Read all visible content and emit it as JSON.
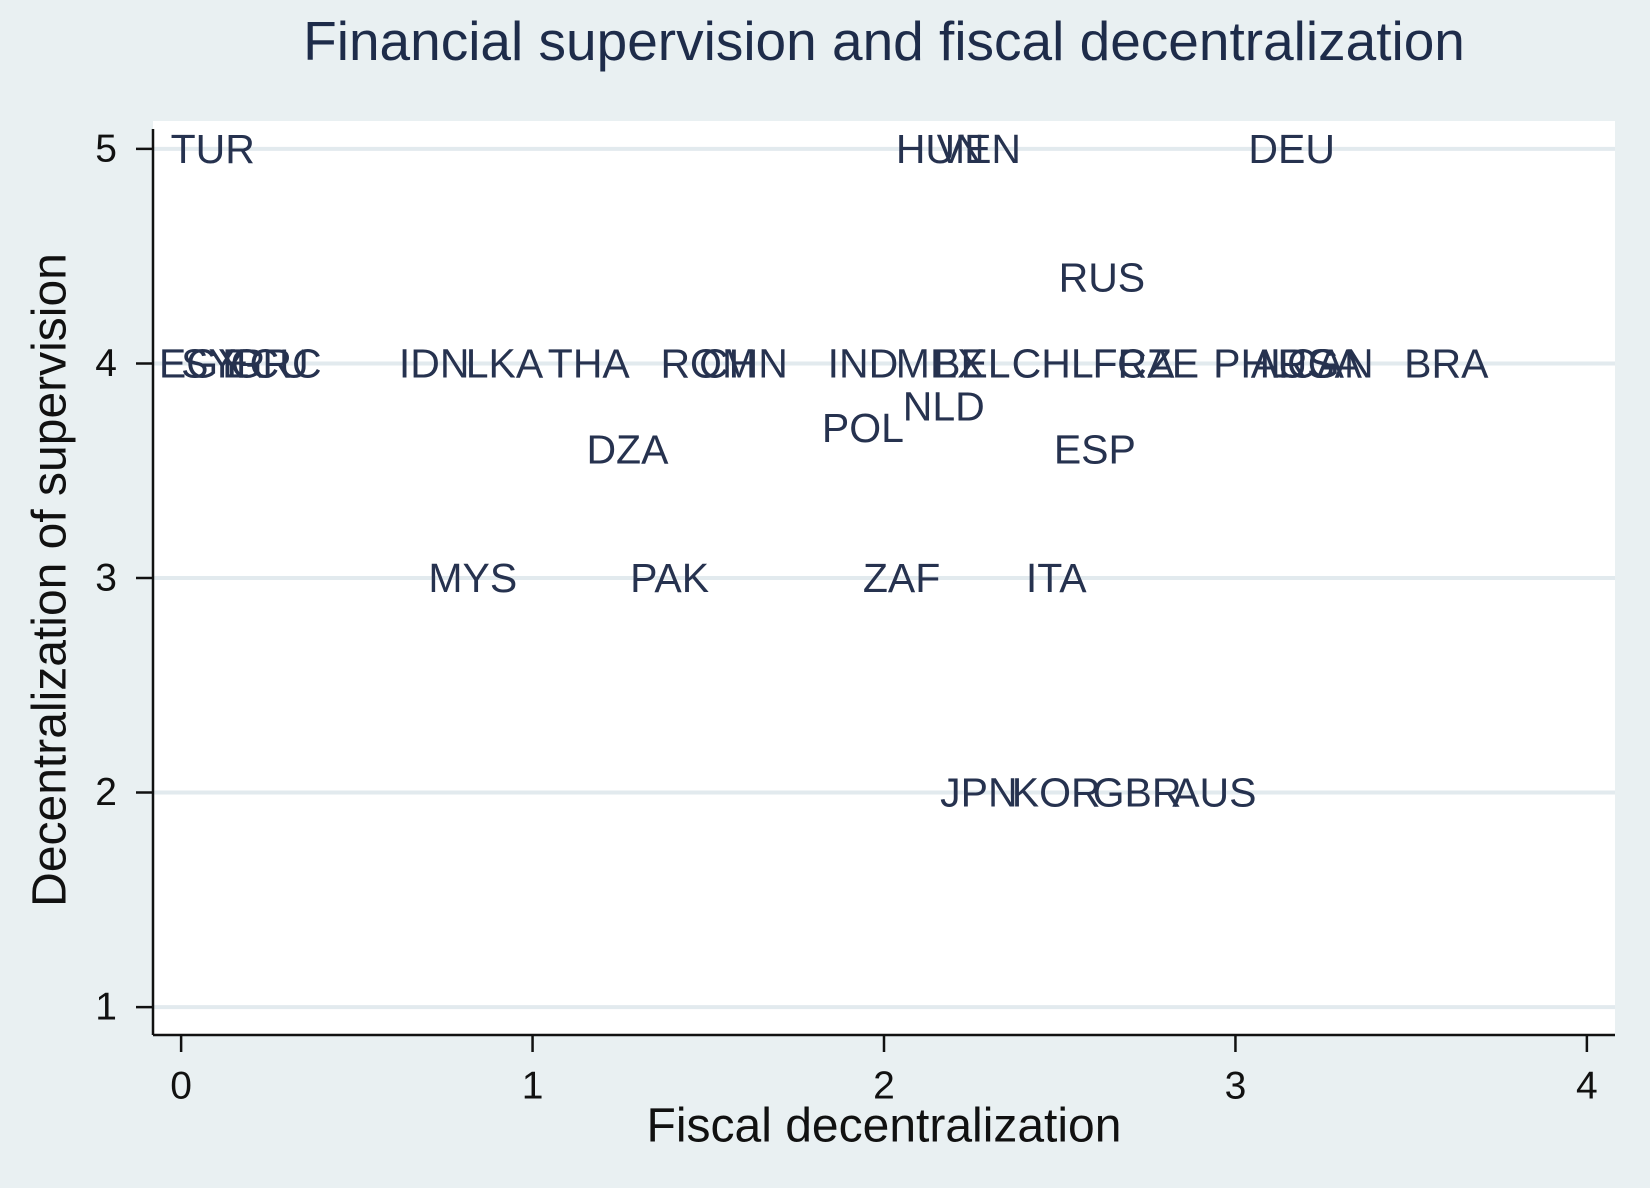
{
  "chart_data": {
    "type": "scatter",
    "title": "Financial supervision and fiscal decentralization",
    "xlabel": "Fiscal decentralization",
    "ylabel": "Decentralization of supervision",
    "xlim": [
      -0.08,
      4.08
    ],
    "ylim": [
      0.87,
      5.13
    ],
    "xticks": [
      0,
      1,
      2,
      3,
      4
    ],
    "yticks": [
      1,
      2,
      3,
      4,
      5
    ],
    "grid": "horizontal",
    "legend": "none",
    "points": [
      {
        "label": "TUR",
        "x": 0.09,
        "y": 5
      },
      {
        "label": "HUN",
        "x": 2.16,
        "y": 5
      },
      {
        "label": "VEN",
        "x": 2.27,
        "y": 5
      },
      {
        "label": "DEU",
        "x": 3.16,
        "y": 5
      },
      {
        "label": "RUS",
        "x": 2.62,
        "y": 4.4
      },
      {
        "label": "EGY",
        "x": 0.06,
        "y": 4
      },
      {
        "label": "SYR",
        "x": 0.12,
        "y": 4
      },
      {
        "label": "ECU",
        "x": 0.24,
        "y": 4
      },
      {
        "label": "GRC",
        "x": 0.27,
        "y": 4
      },
      {
        "label": "IDN",
        "x": 0.72,
        "y": 4
      },
      {
        "label": "LKA",
        "x": 0.92,
        "y": 4
      },
      {
        "label": "THA",
        "x": 1.16,
        "y": 4
      },
      {
        "label": "ROM",
        "x": 1.5,
        "y": 4
      },
      {
        "label": "CHN",
        "x": 1.6,
        "y": 4
      },
      {
        "label": "IND",
        "x": 1.94,
        "y": 4
      },
      {
        "label": "MEX",
        "x": 2.16,
        "y": 4
      },
      {
        "label": "BEL",
        "x": 2.25,
        "y": 4
      },
      {
        "label": "CHL",
        "x": 2.48,
        "y": 4
      },
      {
        "label": "FRA",
        "x": 2.71,
        "y": 4
      },
      {
        "label": "CZE",
        "x": 2.78,
        "y": 4
      },
      {
        "label": "PHL",
        "x": 3.05,
        "y": 4
      },
      {
        "label": "ARG",
        "x": 3.17,
        "y": 4
      },
      {
        "label": "USA",
        "x": 3.24,
        "y": 4
      },
      {
        "label": "CAN",
        "x": 3.27,
        "y": 4
      },
      {
        "label": "BRA",
        "x": 3.6,
        "y": 4
      },
      {
        "label": "NLD",
        "x": 2.17,
        "y": 3.8
      },
      {
        "label": "POL",
        "x": 1.94,
        "y": 3.7
      },
      {
        "label": "DZA",
        "x": 1.27,
        "y": 3.6
      },
      {
        "label": "ESP",
        "x": 2.6,
        "y": 3.6
      },
      {
        "label": "MYS",
        "x": 0.83,
        "y": 3
      },
      {
        "label": "PAK",
        "x": 1.39,
        "y": 3
      },
      {
        "label": "ZAF",
        "x": 2.05,
        "y": 3
      },
      {
        "label": "ITA",
        "x": 2.49,
        "y": 3
      },
      {
        "label": "JPN",
        "x": 2.27,
        "y": 2
      },
      {
        "label": "KOR",
        "x": 2.49,
        "y": 2
      },
      {
        "label": "GBR",
        "x": 2.72,
        "y": 2
      },
      {
        "label": "AUS",
        "x": 2.94,
        "y": 2
      }
    ]
  },
  "colors": {
    "background": "#e9f0f2",
    "plot_region": "#ffffff",
    "gridline": "#e2eaee",
    "axis": "#111111",
    "title": "#1e2c4a",
    "axis_text": "#111111",
    "point_label": "#26324f"
  }
}
